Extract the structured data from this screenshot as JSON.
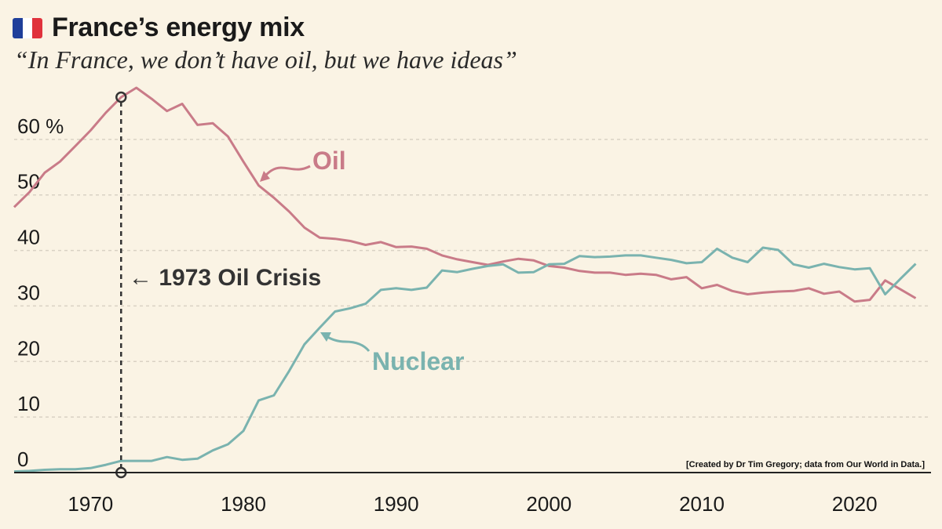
{
  "header": {
    "title": "France’s energy mix",
    "subtitle": "“In France, we don’t have oil, but we have ideas”",
    "flag_colors": [
      "#1f3f9a",
      "#ffffff",
      "#e0323c"
    ]
  },
  "colors": {
    "oil": "#c97b88",
    "nuclear": "#7ab3af",
    "axis": "#222222",
    "grid": "#d9d2c4",
    "background": "#faf3e4"
  },
  "chart_data": {
    "type": "line",
    "title": "France’s energy mix",
    "xlabel": "",
    "ylabel": "%",
    "xlim": [
      1965,
      2025
    ],
    "ylim": [
      0,
      70
    ],
    "x_ticks": [
      1970,
      1980,
      1990,
      2000,
      2010,
      2020
    ],
    "y_ticks": [
      0,
      10,
      20,
      30,
      40,
      50,
      60
    ],
    "y_tick_labels": [
      "0",
      "10",
      "20",
      "30",
      "40",
      "50",
      "60 %"
    ],
    "grid": "horizontal dashed",
    "series": [
      {
        "name": "Oil",
        "color": "#c97b88",
        "x": [
          1965,
          1966,
          1967,
          1968,
          1969,
          1970,
          1971,
          1972,
          1973,
          1974,
          1975,
          1976,
          1977,
          1978,
          1979,
          1980,
          1981,
          1982,
          1983,
          1984,
          1985,
          1986,
          1987,
          1988,
          1989,
          1990,
          1991,
          1992,
          1993,
          1994,
          1995,
          1996,
          1997,
          1998,
          1999,
          2000,
          2001,
          2002,
          2003,
          2004,
          2005,
          2006,
          2007,
          2008,
          2009,
          2010,
          2011,
          2012,
          2013,
          2014,
          2015,
          2016,
          2017,
          2018,
          2019,
          2020,
          2021,
          2022,
          2023,
          2024
        ],
        "values": [
          47.8,
          50.5,
          54,
          56,
          58.8,
          61.6,
          64.8,
          67.6,
          69.3,
          67.3,
          65.1,
          66.4,
          62.6,
          62.9,
          60.5,
          56,
          51.7,
          49.5,
          47,
          44.1,
          42.3,
          42.1,
          41.7,
          41,
          41.5,
          40.6,
          40.7,
          40.3,
          39.1,
          38.4,
          37.9,
          37.4,
          38,
          38.5,
          38.2,
          37.2,
          36.9,
          36.3,
          36,
          36,
          35.6,
          35.8,
          35.6,
          34.8,
          35.2,
          33.2,
          33.8,
          32.7,
          32.1,
          32.4,
          32.6,
          32.7,
          33.2,
          32.2,
          32.6,
          30.8,
          31.1,
          34.6,
          33,
          31.4
        ]
      },
      {
        "name": "Nuclear",
        "color": "#7ab3af",
        "x": [
          1965,
          1966,
          1967,
          1968,
          1969,
          1970,
          1971,
          1972,
          1973,
          1974,
          1975,
          1976,
          1977,
          1978,
          1979,
          1980,
          1981,
          1982,
          1983,
          1984,
          1985,
          1986,
          1987,
          1988,
          1989,
          1990,
          1991,
          1992,
          1993,
          1994,
          1995,
          1996,
          1997,
          1998,
          1999,
          2000,
          2001,
          2002,
          2003,
          2004,
          2005,
          2006,
          2007,
          2008,
          2009,
          2010,
          2011,
          2012,
          2013,
          2014,
          2015,
          2016,
          2017,
          2018,
          2019,
          2020,
          2021,
          2022,
          2023,
          2024
        ],
        "values": [
          0.2,
          0.3,
          0.5,
          0.6,
          0.6,
          0.8,
          1.4,
          2.1,
          2.1,
          2.1,
          2.8,
          2.3,
          2.5,
          4,
          5.1,
          7.5,
          13,
          13.9,
          18.3,
          23.1,
          26.1,
          29,
          29.6,
          30.4,
          32.9,
          33.2,
          32.9,
          33.3,
          36.4,
          36.1,
          36.7,
          37.2,
          37.5,
          36,
          36.1,
          37.5,
          37.6,
          39,
          38.8,
          38.9,
          39.1,
          39.1,
          38.7,
          38.3,
          37.7,
          37.9,
          40.3,
          38.7,
          37.9,
          40.5,
          40.1,
          37.5,
          36.9,
          37.6,
          37,
          36.6,
          36.8,
          32.1,
          34.9,
          37.6
        ]
      }
    ],
    "annotations": [
      {
        "text": "Oil",
        "series": "Oil",
        "points_to": [
          1982,
          52
        ]
      },
      {
        "text": "Nuclear",
        "series": "Nuclear",
        "points_to": [
          1985,
          25
        ]
      },
      {
        "text": "← 1973 Oil Crisis",
        "x": 1972,
        "style": "dashed vertical line"
      },
      {
        "text": "[Created by Dr Tim Gregory; data from Our World in Data.]"
      }
    ]
  }
}
